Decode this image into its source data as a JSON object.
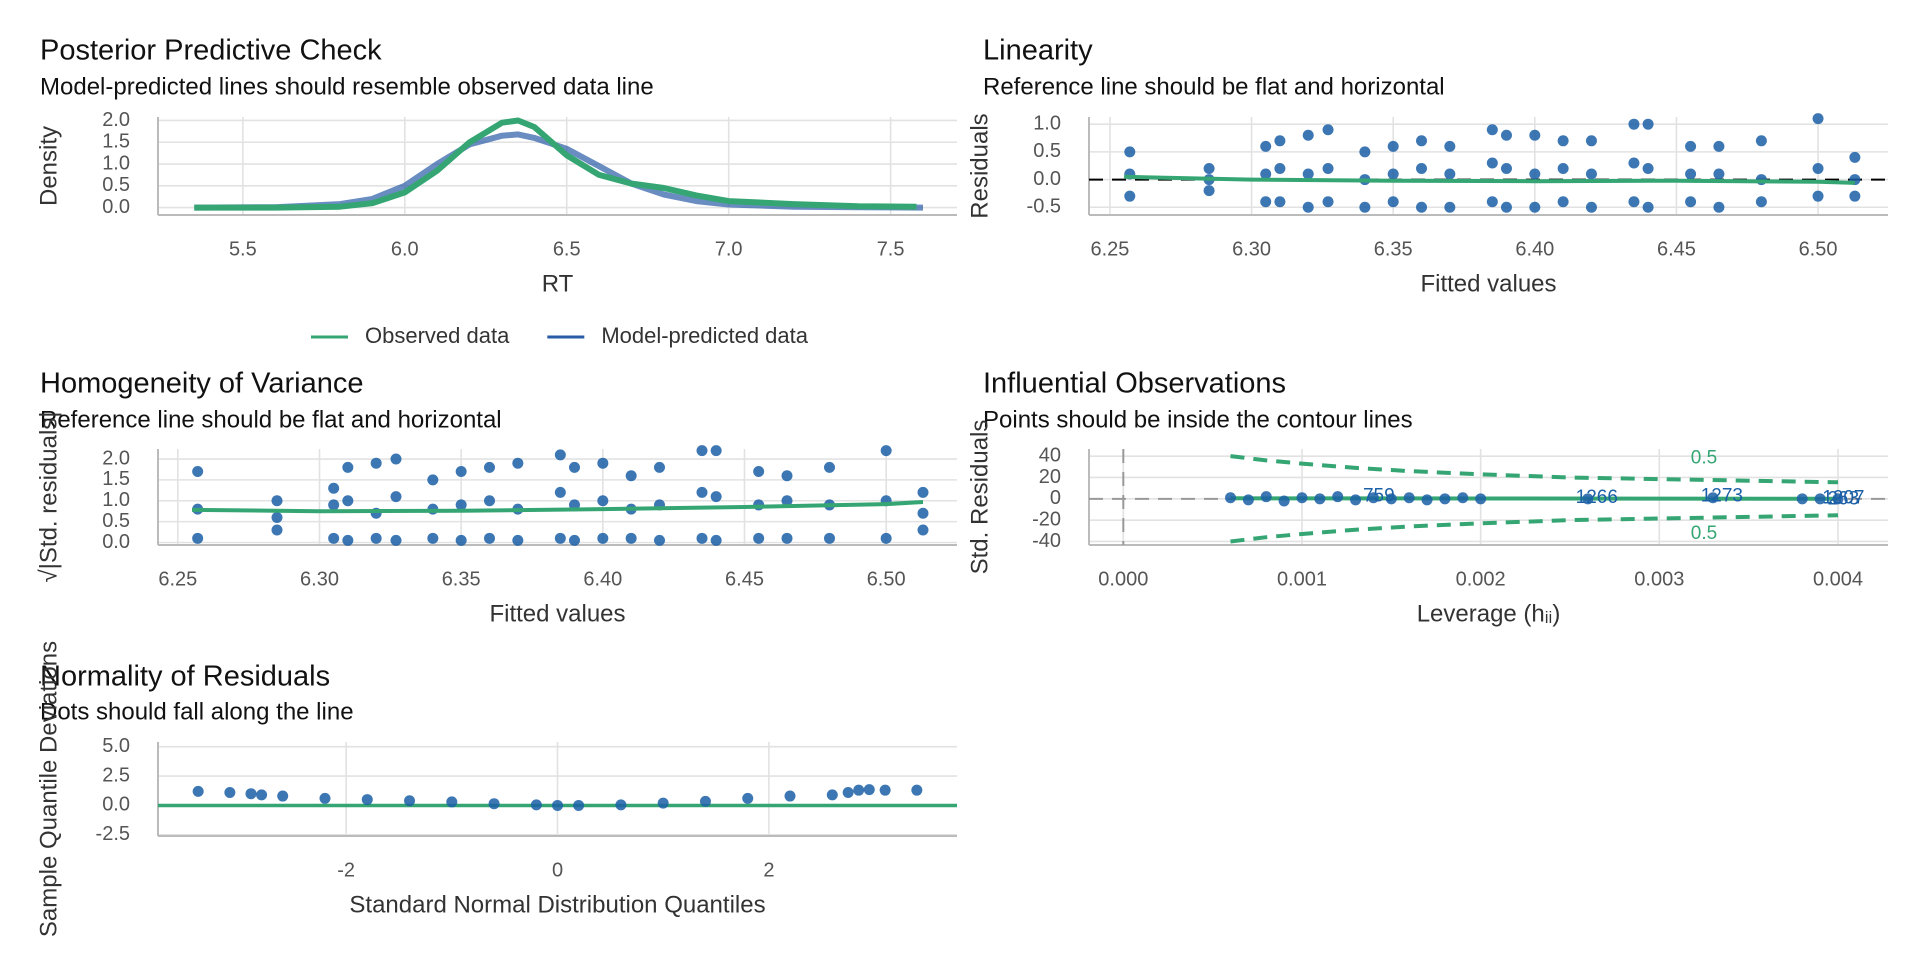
{
  "chart_data": [
    {
      "type": "line",
      "title": "Posterior Predictive Check",
      "subtitle": "Model-predicted lines should resemble observed data line",
      "x_label": "RT",
      "y_label": "Density",
      "grid": true,
      "legend": "bottom",
      "xlim": [
        5.238,
        7.705
      ],
      "ylim": [
        -0.17,
        2.08
      ],
      "xticks": [
        5.5,
        {
          "value": 6,
          "label": "6.0"
        },
        6.5,
        {
          "value": 7,
          "label": "7.0"
        },
        7.5
      ],
      "yticks": [
        {
          "value": 0,
          "label": "0.0"
        },
        0.5,
        {
          "value": 1,
          "label": "1.0"
        },
        1.5,
        {
          "value": 2,
          "label": "2.0"
        }
      ],
      "series": [
        {
          "name": "Model-predicted data",
          "color": "#2a5ba6",
          "draw": "line",
          "x": [
            5.35,
            5.6,
            5.8,
            5.9,
            6.0,
            6.1,
            6.2,
            6.3,
            6.35,
            6.4,
            6.5,
            6.6,
            6.7,
            6.8,
            6.9,
            7.0,
            7.2,
            7.4,
            7.6
          ],
          "values": [
            0,
            0.01,
            0.08,
            0.2,
            0.5,
            1.0,
            1.45,
            1.65,
            1.68,
            1.6,
            1.35,
            0.95,
            0.55,
            0.3,
            0.15,
            0.07,
            0.02,
            0.01,
            0
          ]
        },
        {
          "name": "Observed data",
          "color": "#35a673",
          "draw": "line",
          "x": [
            5.35,
            5.6,
            5.8,
            5.9,
            6.0,
            6.1,
            6.2,
            6.3,
            6.35,
            6.4,
            6.5,
            6.6,
            6.7,
            6.8,
            6.9,
            7.0,
            7.2,
            7.4,
            7.58
          ],
          "values": [
            0,
            0,
            0.02,
            0.1,
            0.35,
            0.85,
            1.5,
            1.95,
            2.0,
            1.85,
            1.2,
            0.75,
            0.55,
            0.45,
            0.28,
            0.15,
            0.08,
            0.03,
            0.02
          ]
        }
      ]
    },
    {
      "type": "scatter",
      "title": "Linearity",
      "subtitle": "Reference line should be flat and horizontal",
      "x_label": "Fitted values",
      "y_label": "Residuals",
      "grid": true,
      "xlim": [
        6.2426,
        6.5247
      ],
      "ylim": [
        -0.64,
        1.13
      ],
      "xticks": [
        6.25,
        {
          "value": 6.3,
          "label": "6.30"
        },
        6.35,
        {
          "value": 6.4,
          "label": "6.40"
        },
        6.45,
        {
          "value": 6.5,
          "label": "6.50"
        }
      ],
      "yticks": [
        -0.5,
        {
          "value": 0,
          "label": "0.0"
        },
        0.5,
        {
          "value": 1,
          "label": "1.0"
        }
      ],
      "reference_lines": [
        {
          "orientation": "h",
          "value": 0,
          "color": "#000000",
          "dash": "dashed"
        }
      ],
      "series": [
        {
          "color": "#1b5fa6",
          "draw": "points",
          "x": [
            6.257,
            6.285,
            6.305,
            6.31,
            6.32,
            6.327,
            6.34,
            6.35,
            6.36,
            6.37,
            6.385,
            6.39,
            6.4,
            6.41,
            6.42,
            6.435,
            6.44,
            6.455,
            6.465,
            6.48,
            6.5,
            6.513,
            6.257,
            6.285,
            6.305,
            6.31,
            6.32,
            6.327,
            6.34,
            6.35,
            6.36,
            6.37,
            6.385,
            6.39,
            6.4,
            6.41,
            6.42,
            6.435,
            6.44,
            6.455,
            6.465,
            6.48,
            6.5,
            6.513,
            6.257,
            6.285,
            6.305,
            6.31,
            6.32,
            6.327,
            6.34,
            6.35,
            6.36,
            6.37,
            6.385,
            6.39,
            6.4,
            6.41,
            6.42,
            6.435,
            6.44,
            6.455,
            6.465,
            6.48,
            6.5,
            6.513
          ],
          "values": [
            0.5,
            0.2,
            0.6,
            0.7,
            0.8,
            0.9,
            0.5,
            0.6,
            0.7,
            0.6,
            0.9,
            0.8,
            0.8,
            0.7,
            0.7,
            1.0,
            1.0,
            0.6,
            0.6,
            0.7,
            1.1,
            0.4,
            -0.3,
            -0.2,
            -0.4,
            -0.4,
            -0.5,
            -0.4,
            -0.5,
            -0.4,
            -0.5,
            -0.5,
            -0.4,
            -0.5,
            -0.5,
            -0.4,
            -0.5,
            -0.4,
            -0.5,
            -0.4,
            -0.5,
            -0.4,
            -0.3,
            -0.3,
            0.1,
            0,
            0.1,
            0.2,
            0.1,
            0.2,
            0,
            0.1,
            0.2,
            0.1,
            0.3,
            0.2,
            0.1,
            0.2,
            0.1,
            0.3,
            0.2,
            0.1,
            0.1,
            0,
            0.2,
            0
          ]
        },
        {
          "color": "#35a673",
          "draw": "line",
          "x": [
            6.255,
            6.3,
            6.35,
            6.4,
            6.45,
            6.5,
            6.513
          ],
          "values": [
            0.05,
            0.0,
            -0.02,
            -0.03,
            -0.02,
            -0.04,
            -0.06
          ]
        }
      ]
    },
    {
      "type": "scatter",
      "title": "Homogeneity of Variance",
      "subtitle": "Reference line should be flat and horizontal",
      "x_label": "Fitted values",
      "y_label": "√|Std. residuals|",
      "grid": true,
      "xlim": [
        6.243,
        6.525
      ],
      "ylim": [
        -0.06,
        2.24
      ],
      "xticks": [
        6.25,
        {
          "value": 6.3,
          "label": "6.30"
        },
        6.35,
        {
          "value": 6.4,
          "label": "6.40"
        },
        6.45,
        {
          "value": 6.5,
          "label": "6.50"
        }
      ],
      "yticks": [
        {
          "value": 0,
          "label": "0.0"
        },
        0.5,
        {
          "value": 1,
          "label": "1.0"
        },
        1.5,
        {
          "value": 2,
          "label": "2.0"
        }
      ],
      "series": [
        {
          "color": "#1b5fa6",
          "draw": "points",
          "x": [
            6.257,
            6.285,
            6.305,
            6.31,
            6.32,
            6.327,
            6.34,
            6.35,
            6.36,
            6.37,
            6.385,
            6.39,
            6.4,
            6.41,
            6.42,
            6.435,
            6.44,
            6.455,
            6.465,
            6.48,
            6.5,
            6.513,
            6.257,
            6.285,
            6.305,
            6.31,
            6.32,
            6.327,
            6.34,
            6.35,
            6.36,
            6.37,
            6.385,
            6.39,
            6.4,
            6.41,
            6.42,
            6.435,
            6.44,
            6.455,
            6.465,
            6.48,
            6.5,
            6.513,
            6.257,
            6.285,
            6.305,
            6.31,
            6.32,
            6.327,
            6.34,
            6.35,
            6.36,
            6.37,
            6.385,
            6.39,
            6.4,
            6.41,
            6.42,
            6.435,
            6.44,
            6.455,
            6.465,
            6.48,
            6.5,
            6.513
          ],
          "values": [
            1.7,
            1.0,
            1.3,
            1.8,
            1.9,
            2.0,
            1.5,
            1.7,
            1.8,
            1.9,
            2.1,
            1.8,
            1.9,
            1.6,
            1.8,
            2.2,
            2.2,
            1.7,
            1.6,
            1.8,
            2.2,
            1.2,
            0.1,
            0.3,
            0.1,
            0.05,
            0.1,
            0.05,
            0.1,
            0.05,
            0.1,
            0.05,
            0.1,
            0.05,
            0.1,
            0.1,
            0.05,
            0.1,
            0.05,
            0.1,
            0.1,
            0.1,
            0.1,
            0.3,
            0.8,
            0.6,
            0.9,
            1.0,
            0.7,
            1.1,
            0.8,
            0.9,
            1.0,
            0.8,
            1.2,
            0.9,
            1.0,
            0.8,
            0.9,
            1.2,
            1.1,
            0.9,
            1.0,
            0.9,
            1.0,
            0.7
          ]
        },
        {
          "color": "#35a673",
          "draw": "line",
          "x": [
            6.255,
            6.3,
            6.35,
            6.4,
            6.45,
            6.5,
            6.513
          ],
          "values": [
            0.78,
            0.75,
            0.76,
            0.8,
            0.85,
            0.92,
            0.97
          ]
        }
      ]
    },
    {
      "type": "scatter",
      "title": "Influential Observations",
      "subtitle": "Points should be inside the contour lines",
      "x_label": "Leverage (hᵢᵢ)",
      "y_label": "Std. Residuals",
      "grid": true,
      "xlim": [
        -0.000192,
        0.00428
      ],
      "ylim": [
        -43.3,
        46.7
      ],
      "xticks": [
        {
          "value": 0,
          "label": "0.000"
        },
        0.001,
        0.002,
        0.003,
        0.004
      ],
      "yticks": [
        -40,
        -20,
        0,
        20,
        40
      ],
      "reference_lines": [
        {
          "orientation": "h",
          "value": 0,
          "color": "#999999",
          "dash": "dashed"
        },
        {
          "orientation": "v",
          "value": 0,
          "color": "#999999",
          "dash": "dashed"
        }
      ],
      "series": [
        {
          "color": "#35a673",
          "draw": "line",
          "dash": "dashed",
          "x": [
            0.0006,
            0.0008,
            0.001,
            0.0013,
            0.0016,
            0.002,
            0.0025,
            0.003,
            0.0035,
            0.004
          ],
          "values": [
            40,
            36,
            33,
            29,
            26,
            23,
            20,
            18.5,
            17,
            15.5
          ]
        },
        {
          "color": "#35a673",
          "draw": "line",
          "dash": "dashed",
          "x": [
            0.0006,
            0.0008,
            0.001,
            0.0013,
            0.0016,
            0.002,
            0.0025,
            0.003,
            0.0035,
            0.004
          ],
          "values": [
            -40,
            -36,
            -33,
            -29,
            -26,
            -23,
            -20,
            -18.5,
            -17,
            -15.5
          ]
        },
        {
          "color": "#35a673",
          "draw": "line",
          "x": [
            0.0006,
            0.002,
            0.003,
            0.004
          ],
          "values": [
            0.5,
            0.3,
            0.2,
            0
          ]
        },
        {
          "color": "#1b5fa6",
          "draw": "points",
          "x": [
            0.0006,
            0.0007,
            0.0008,
            0.0009,
            0.001,
            0.0011,
            0.0012,
            0.0013,
            0.0014,
            0.0015,
            0.0016,
            0.0017,
            0.0018,
            0.0019,
            0.002,
            0.0026,
            0.0033,
            0.0038,
            0.0039,
            0.004
          ],
          "values": [
            1,
            -1,
            2,
            -2,
            1,
            0,
            2,
            -1,
            1,
            0,
            1,
            -1,
            0,
            1,
            0,
            0,
            1,
            0,
            0,
            0
          ]
        }
      ],
      "annotations": [
        {
          "text": "759",
          "x": 0.00143,
          "y": 2,
          "color": "#1b5fa6"
        },
        {
          "text": "1266",
          "x": 0.00265,
          "y": 1,
          "color": "#1b5fa6"
        },
        {
          "text": "1273",
          "x": 0.00335,
          "y": 2,
          "color": "#1b5fa6"
        },
        {
          "text": "1207",
          "x": 0.00403,
          "y": 0.5,
          "color": "#1b5fa6"
        },
        {
          "text": "263",
          "x": 0.00403,
          "y": -0.5,
          "color": "#1b5fa6"
        },
        {
          "text": "0.5",
          "x": 0.00325,
          "y": 38,
          "color": "#35a673"
        },
        {
          "text": "0.5",
          "x": 0.00325,
          "y": -33,
          "color": "#35a673"
        }
      ]
    },
    {
      "type": "scatter",
      "title": "Normality of Residuals",
      "subtitle": "Dots should fall along the line",
      "x_label": "Standard Normal Distribution Quantiles",
      "y_label": "Sample Quantile Deviations",
      "grid": true,
      "xlim": [
        -3.78,
        3.78
      ],
      "ylim": [
        -2.6,
        5.4
      ],
      "xticks": [
        -2,
        0,
        2
      ],
      "yticks": [
        -2.5,
        {
          "value": 0,
          "label": "0.0"
        },
        2.5,
        {
          "value": 5,
          "label": "5.0"
        }
      ],
      "reference_lines": [
        {
          "orientation": "h",
          "value": 0,
          "color": "#35a673",
          "dash": "solid"
        }
      ],
      "series": [
        {
          "color": "#1b5fa6",
          "draw": "points",
          "x": [
            -3.4,
            -3.1,
            -2.9,
            -2.8,
            -2.6,
            -2.2,
            -1.8,
            -1.4,
            -1,
            -0.6,
            -0.2,
            0,
            0.2,
            0.6,
            1,
            1.4,
            1.8,
            2.2,
            2.6,
            2.75,
            2.85,
            2.95,
            3.1,
            3.4
          ],
          "values": [
            1.2,
            1.1,
            1.0,
            0.9,
            0.8,
            0.6,
            0.5,
            0.4,
            0.3,
            0.15,
            0.05,
            0,
            0,
            0.05,
            0.2,
            0.35,
            0.6,
            0.8,
            0.9,
            1.1,
            1.3,
            1.35,
            1.3,
            1.3
          ]
        }
      ]
    }
  ]
}
